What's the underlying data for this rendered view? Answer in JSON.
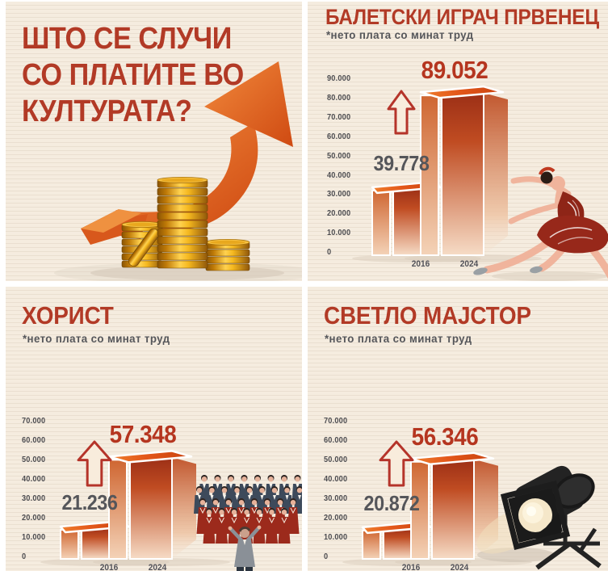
{
  "theme": {
    "panel_background": "#f4ebdf",
    "panel_stripe": "#eadfd0",
    "accent_red": "#b23a26",
    "value_red": "#b5351f",
    "text_gray": "#55565a",
    "bar_front_top": "#9c2f16",
    "bar_front_bottom": "#f6dcc6",
    "bar_top_face": "#e3571a",
    "coin_gold": "#f2a91c",
    "arrow_orange": "#e06420"
  },
  "intro": {
    "title_lines": [
      "ШТО СЕ СЛУЧИ",
      "СО ПЛАТИТЕ ВО",
      "КУЛТУРАТА?"
    ],
    "illustration": "golden-coin-stacks-with-rising-arrow"
  },
  "icons": {
    "increase_arrow": "outlined-block-arrow-up"
  },
  "chart_data": [
    {
      "id": "ballet-principal-dancer",
      "type": "bar",
      "title": "БАЛЕТСКИ ИГРАЧ ПРВЕНЕЦ",
      "subtitle": "*нето плата со минат труд",
      "categories": [
        "2016",
        "2024"
      ],
      "values": [
        39778,
        89052
      ],
      "value_labels": [
        "39.778",
        "89.052"
      ],
      "value_label_styles": [
        "gray",
        "red"
      ],
      "ylim": [
        0,
        90000
      ],
      "ytick_labels": [
        "90.000",
        "80.000",
        "70.000",
        "60.000",
        "50.000",
        "40.000",
        "30.000",
        "20.000",
        "10.000",
        "0"
      ],
      "grid": false,
      "legend": null,
      "illustration": "ballerina"
    },
    {
      "id": "chorist",
      "type": "bar",
      "title": "ХОРИСТ",
      "subtitle": "*нето плата со минат труд",
      "categories": [
        "2016",
        "2024"
      ],
      "values": [
        21236,
        57348
      ],
      "value_labels": [
        "21.236",
        "57.348"
      ],
      "value_label_styles": [
        "gray",
        "red"
      ],
      "ylim": [
        0,
        70000
      ],
      "ytick_labels": [
        "70.000",
        "60.000",
        "50.000",
        "40.000",
        "30.000",
        "20.000",
        "10.000",
        "0"
      ],
      "grid": false,
      "legend": null,
      "illustration": "choir"
    },
    {
      "id": "light-master",
      "type": "bar",
      "title": "СВЕТЛО МАЈСТОР",
      "subtitle": "*нето плата со минат труд",
      "categories": [
        "2016",
        "2024"
      ],
      "values": [
        20872,
        56346
      ],
      "value_labels": [
        "20.872",
        "56.346"
      ],
      "value_label_styles": [
        "gray",
        "red"
      ],
      "ylim": [
        0,
        70000
      ],
      "ytick_labels": [
        "70.000",
        "60.000",
        "50.000",
        "40.000",
        "30.000",
        "20.000",
        "10.000",
        "0"
      ],
      "grid": false,
      "legend": null,
      "illustration": "spotlight"
    }
  ]
}
